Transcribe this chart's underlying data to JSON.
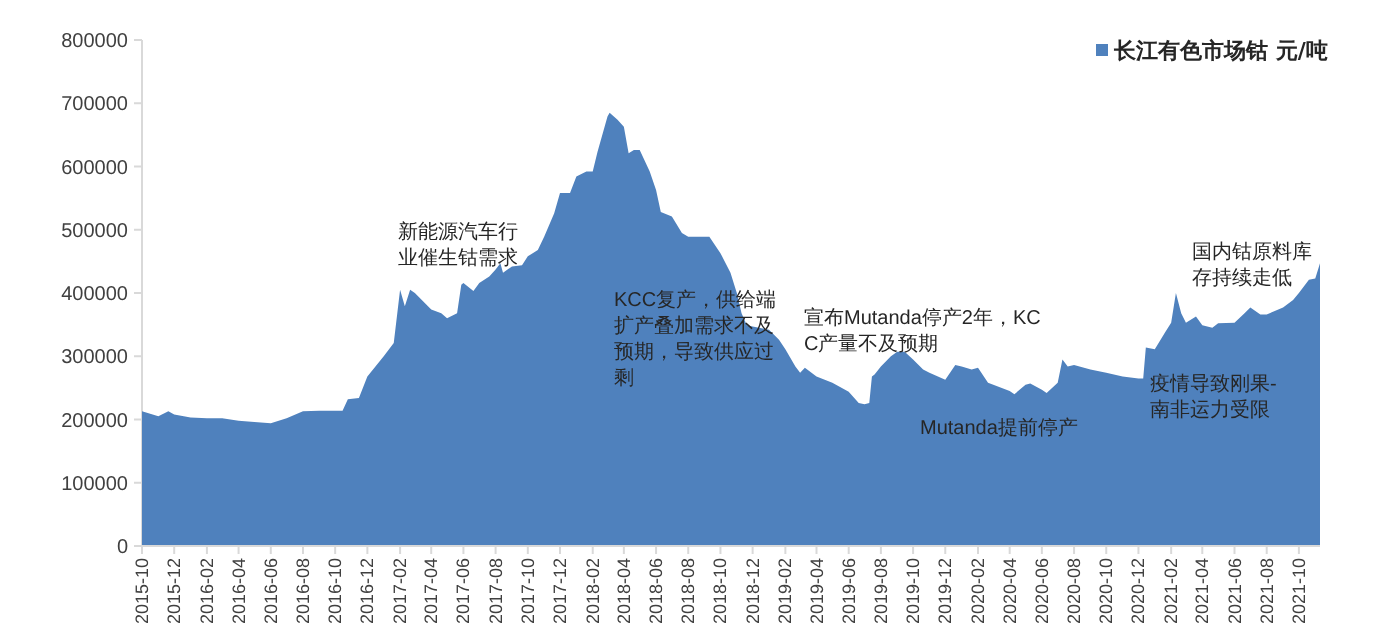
{
  "chart_data": {
    "type": "area",
    "series": [
      {
        "name": "长江有色市场钴 元/吨",
        "color": "#4f81bd",
        "x": [
          "2015-10-01",
          "2015-11-01",
          "2015-11-20",
          "2015-12-01",
          "2016-01-01",
          "2016-02-01",
          "2016-03-01",
          "2016-04-01",
          "2016-05-01",
          "2016-06-01",
          "2016-07-01",
          "2016-08-01",
          "2016-09-01",
          "2016-10-15",
          "2016-10-25",
          "2016-11-15",
          "2016-12-01",
          "2017-01-01",
          "2017-01-20",
          "2017-02-01",
          "2017-02-10",
          "2017-02-20",
          "2017-03-01",
          "2017-04-01",
          "2017-04-20",
          "2017-05-01",
          "2017-05-20",
          "2017-05-28",
          "2017-06-01",
          "2017-06-20",
          "2017-07-01",
          "2017-07-20",
          "2017-08-01",
          "2017-08-10",
          "2017-08-15",
          "2017-09-01",
          "2017-09-20",
          "2017-10-01",
          "2017-10-20",
          "2017-11-01",
          "2017-11-20",
          "2017-12-01",
          "2017-12-20",
          "2018-01-01",
          "2018-01-20",
          "2018-02-01",
          "2018-02-10",
          "2018-03-01",
          "2018-03-05",
          "2018-03-20",
          "2018-04-01",
          "2018-04-10",
          "2018-04-20",
          "2018-05-01",
          "2018-05-20",
          "2018-06-01",
          "2018-06-10",
          "2018-07-01",
          "2018-07-20",
          "2018-08-01",
          "2018-09-10",
          "2018-10-01",
          "2018-10-20",
          "2018-11-01",
          "2018-11-10",
          "2018-11-20",
          "2018-12-01",
          "2019-01-01",
          "2019-01-20",
          "2019-02-01",
          "2019-02-20",
          "2019-03-01",
          "2019-03-10",
          "2019-04-01",
          "2019-05-01",
          "2019-06-01",
          "2019-06-20",
          "2019-07-01",
          "2019-07-10",
          "2019-07-15",
          "2019-07-20",
          "2019-08-01",
          "2019-08-20",
          "2019-09-01",
          "2019-09-15",
          "2019-10-01",
          "2019-10-20",
          "2019-11-01",
          "2019-12-01",
          "2019-12-20",
          "2020-01-01",
          "2020-01-20",
          "2020-02-01",
          "2020-02-20",
          "2020-03-01",
          "2020-04-01",
          "2020-04-10",
          "2020-05-01",
          "2020-05-10",
          "2020-06-01",
          "2020-06-10",
          "2020-07-01",
          "2020-07-10",
          "2020-07-20",
          "2020-08-01",
          "2020-09-01",
          "2020-10-01",
          "2020-11-01",
          "2020-12-01",
          "2020-12-10",
          "2020-12-15",
          "2021-01-01",
          "2021-01-20",
          "2021-02-01",
          "2021-02-10",
          "2021-02-20",
          "2021-03-01",
          "2021-03-20",
          "2021-04-01",
          "2021-04-20",
          "2021-05-01",
          "2021-06-01",
          "2021-06-20",
          "2021-07-01",
          "2021-07-20",
          "2021-08-01",
          "2021-09-01",
          "2021-09-20",
          "2021-10-01",
          "2021-10-20",
          "2021-11-01",
          "2021-11-10"
        ],
        "values": [
          213000,
          205000,
          213000,
          208000,
          203000,
          202000,
          202000,
          198000,
          196000,
          194000,
          202000,
          213000,
          214000,
          214000,
          232000,
          234000,
          268000,
          300000,
          321000,
          405000,
          379000,
          405000,
          400000,
          374000,
          368000,
          360000,
          368000,
          413000,
          416000,
          403000,
          416000,
          426000,
          437000,
          447000,
          432000,
          442000,
          444000,
          458000,
          468000,
          489000,
          526000,
          558000,
          558000,
          584000,
          592000,
          592000,
          623000,
          679000,
          685000,
          674000,
          663000,
          621000,
          626000,
          626000,
          592000,
          563000,
          528000,
          521000,
          495000,
          489000,
          489000,
          463000,
          432000,
          400000,
          368000,
          349000,
          347000,
          342000,
          326000,
          311000,
          284000,
          274000,
          282000,
          268000,
          258000,
          244000,
          226000,
          224000,
          226000,
          268000,
          271000,
          284000,
          300000,
          307000,
          307000,
          295000,
          279000,
          274000,
          263000,
          286000,
          284000,
          279000,
          282000,
          258000,
          255000,
          245000,
          240000,
          255000,
          257000,
          247000,
          242000,
          258000,
          295000,
          284000,
          286000,
          279000,
          274000,
          268000,
          265000,
          265000,
          314000,
          311000,
          337000,
          353000,
          400000,
          368000,
          353000,
          363000,
          349000,
          345000,
          352000,
          353000,
          368000,
          377000,
          366000,
          366000,
          377000,
          389000,
          400000,
          421000,
          423000,
          447000
        ]
      }
    ],
    "xlim": [
      "2015-10-01",
      "2021-11-10"
    ],
    "xticks": [
      "2015-10",
      "2015-12",
      "2016-02",
      "2016-04",
      "2016-06",
      "2016-08",
      "2016-10",
      "2016-12",
      "2017-02",
      "2017-04",
      "2017-06",
      "2017-08",
      "2017-10",
      "2017-12",
      "2018-02",
      "2018-04",
      "2018-06",
      "2018-08",
      "2018-10",
      "2018-12",
      "2019-02",
      "2019-04",
      "2019-06",
      "2019-08",
      "2019-10",
      "2019-12",
      "2020-02",
      "2020-04",
      "2020-06",
      "2020-08",
      "2020-10",
      "2020-12",
      "2021-02",
      "2021-04",
      "2021-06",
      "2021-08",
      "2021-10"
    ],
    "ylim": [
      0,
      800000
    ],
    "yticks": [
      0,
      100000,
      200000,
      300000,
      400000,
      500000,
      600000,
      700000,
      800000
    ],
    "legend": "top right",
    "annotations": [
      "新能源汽车行业催生钴需求",
      "KCC复产，供给端扩产叠加需求不及预期，导致供应过剩",
      "宣布Mutanda停产2年，KCC产量不及预期",
      "Mutanda提前停产",
      "疫情导致刚果-南非运力受限",
      "国内钴原料库存持续走低"
    ]
  }
}
